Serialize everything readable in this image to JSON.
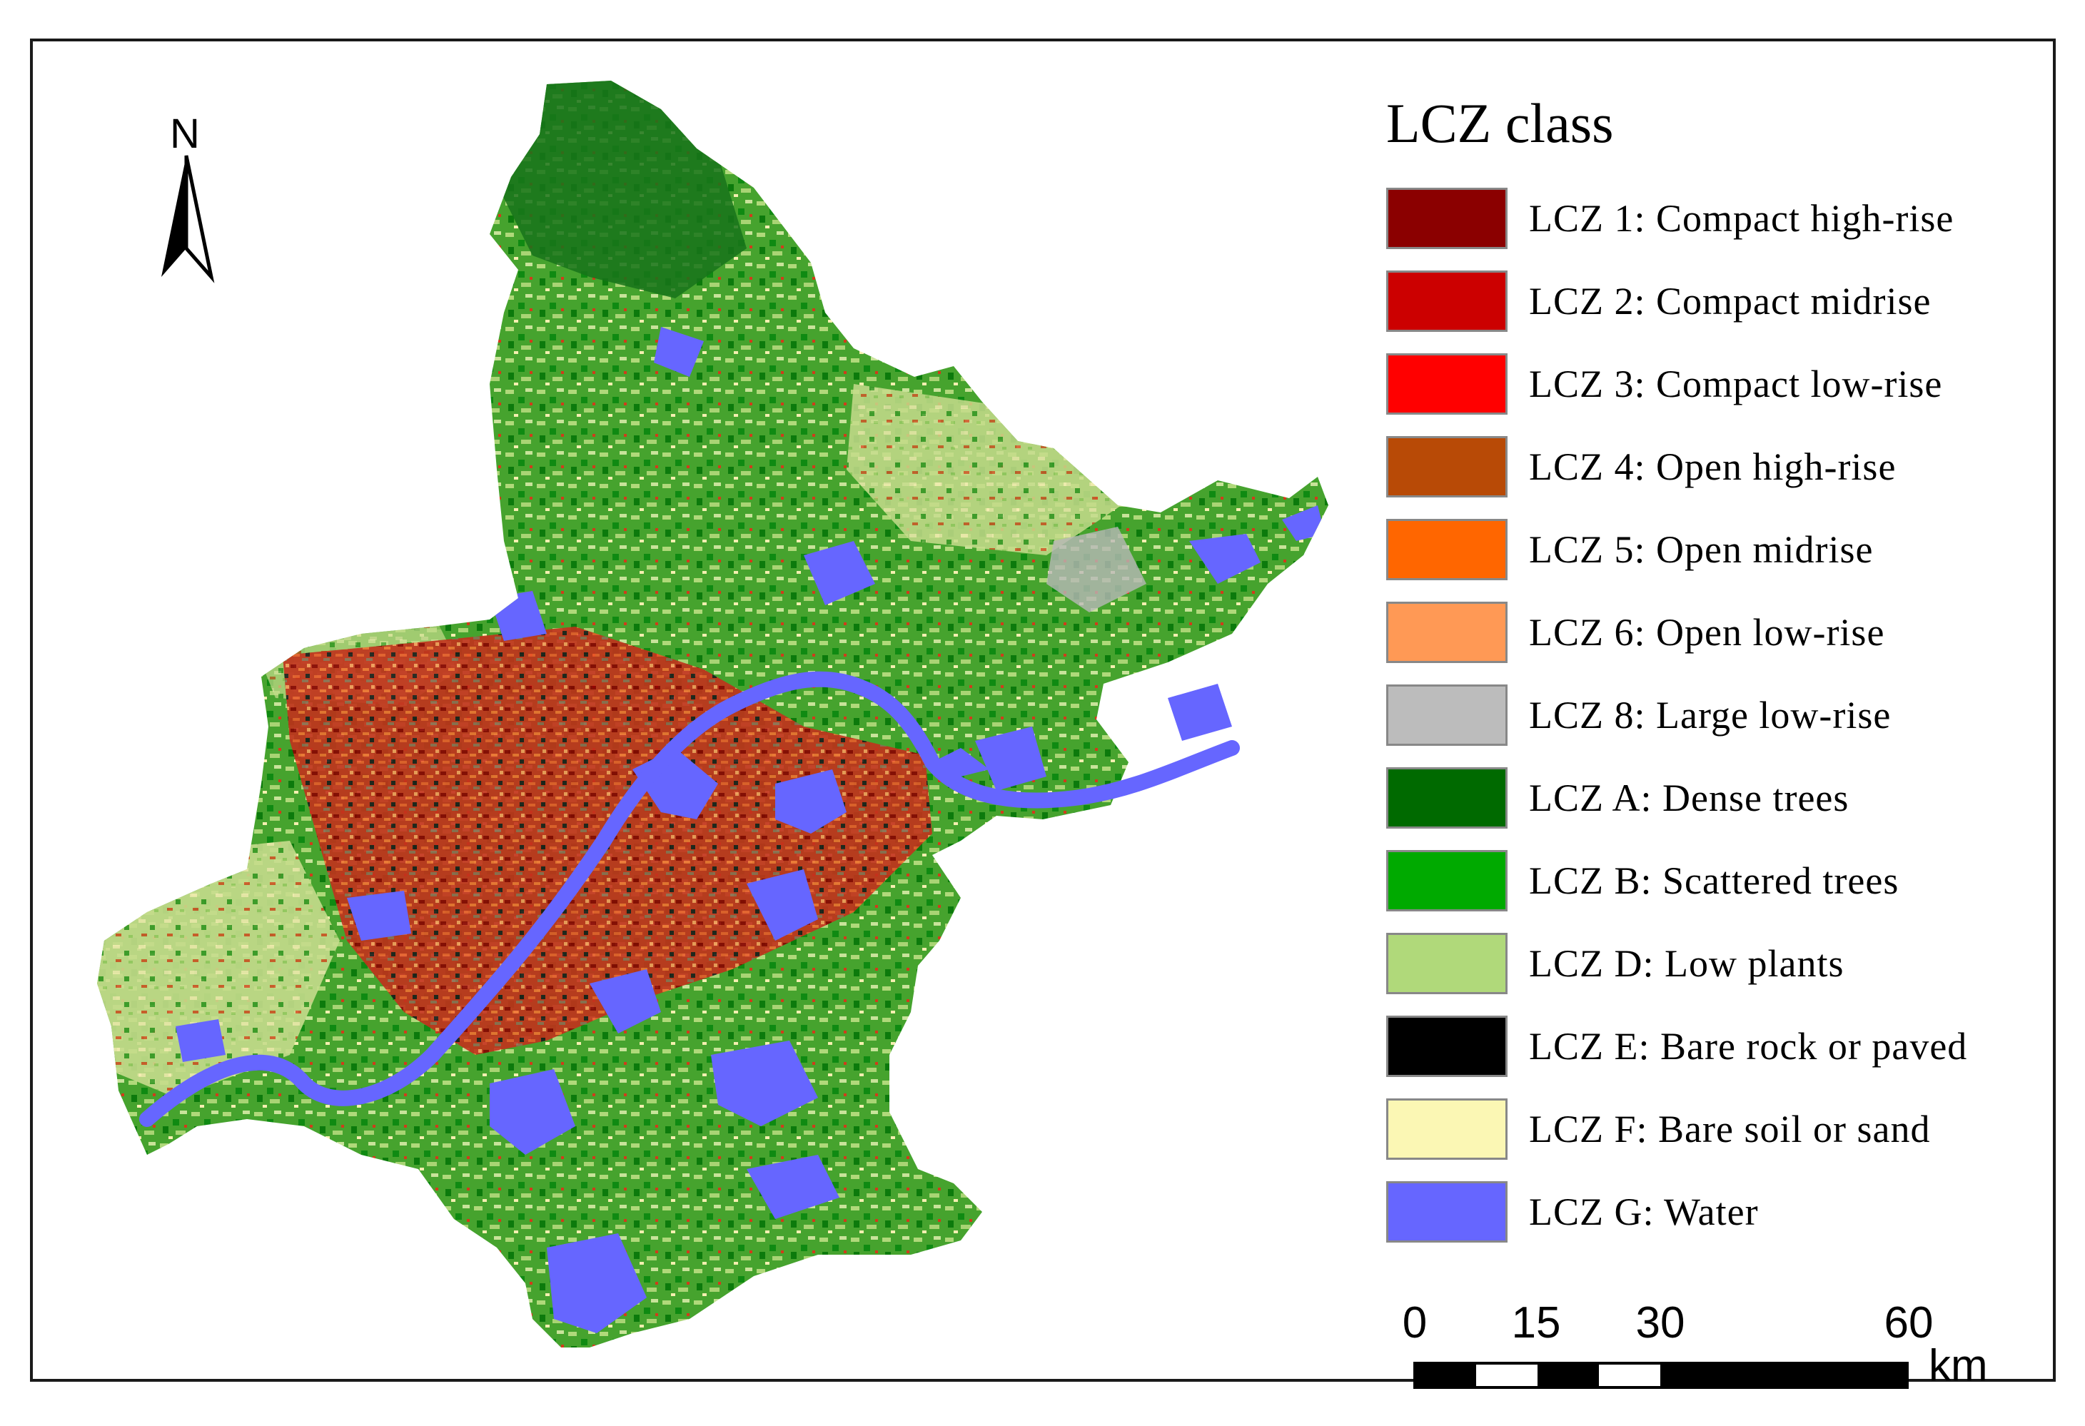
{
  "legend": {
    "title": "LCZ class",
    "items": [
      {
        "label": "LCZ 1: Compact high-rise",
        "color": "#8b0000"
      },
      {
        "label": "LCZ 2: Compact midrise",
        "color": "#cc0000"
      },
      {
        "label": "LCZ 3: Compact low-rise",
        "color": "#ff0000"
      },
      {
        "label": "LCZ 4: Open high-rise",
        "color": "#b84a06"
      },
      {
        "label": "LCZ 5: Open midrise",
        "color": "#ff6600"
      },
      {
        "label": "LCZ 6: Open low-rise",
        "color": "#ff9955"
      },
      {
        "label": "LCZ 8: Large low-rise",
        "color": "#bcbcbc"
      },
      {
        "label": "LCZ A: Dense trees",
        "color": "#006a00"
      },
      {
        "label": "LCZ B: Scattered trees",
        "color": "#00aa00"
      },
      {
        "label": "LCZ D: Low plants",
        "color": "#b0d97a"
      },
      {
        "label": "LCZ E: Bare rock or paved",
        "color": "#000000"
      },
      {
        "label": "LCZ F: Bare soil or sand",
        "color": "#fbf7b4"
      },
      {
        "label": "LCZ G: Water",
        "color": "#6666ff"
      }
    ]
  },
  "north_arrow": {
    "label": "N"
  },
  "scale_bar": {
    "ticks": [
      "0",
      "15",
      "30",
      "60"
    ],
    "tick_values_km": [
      0,
      15,
      30,
      60
    ],
    "unit": "km"
  }
}
